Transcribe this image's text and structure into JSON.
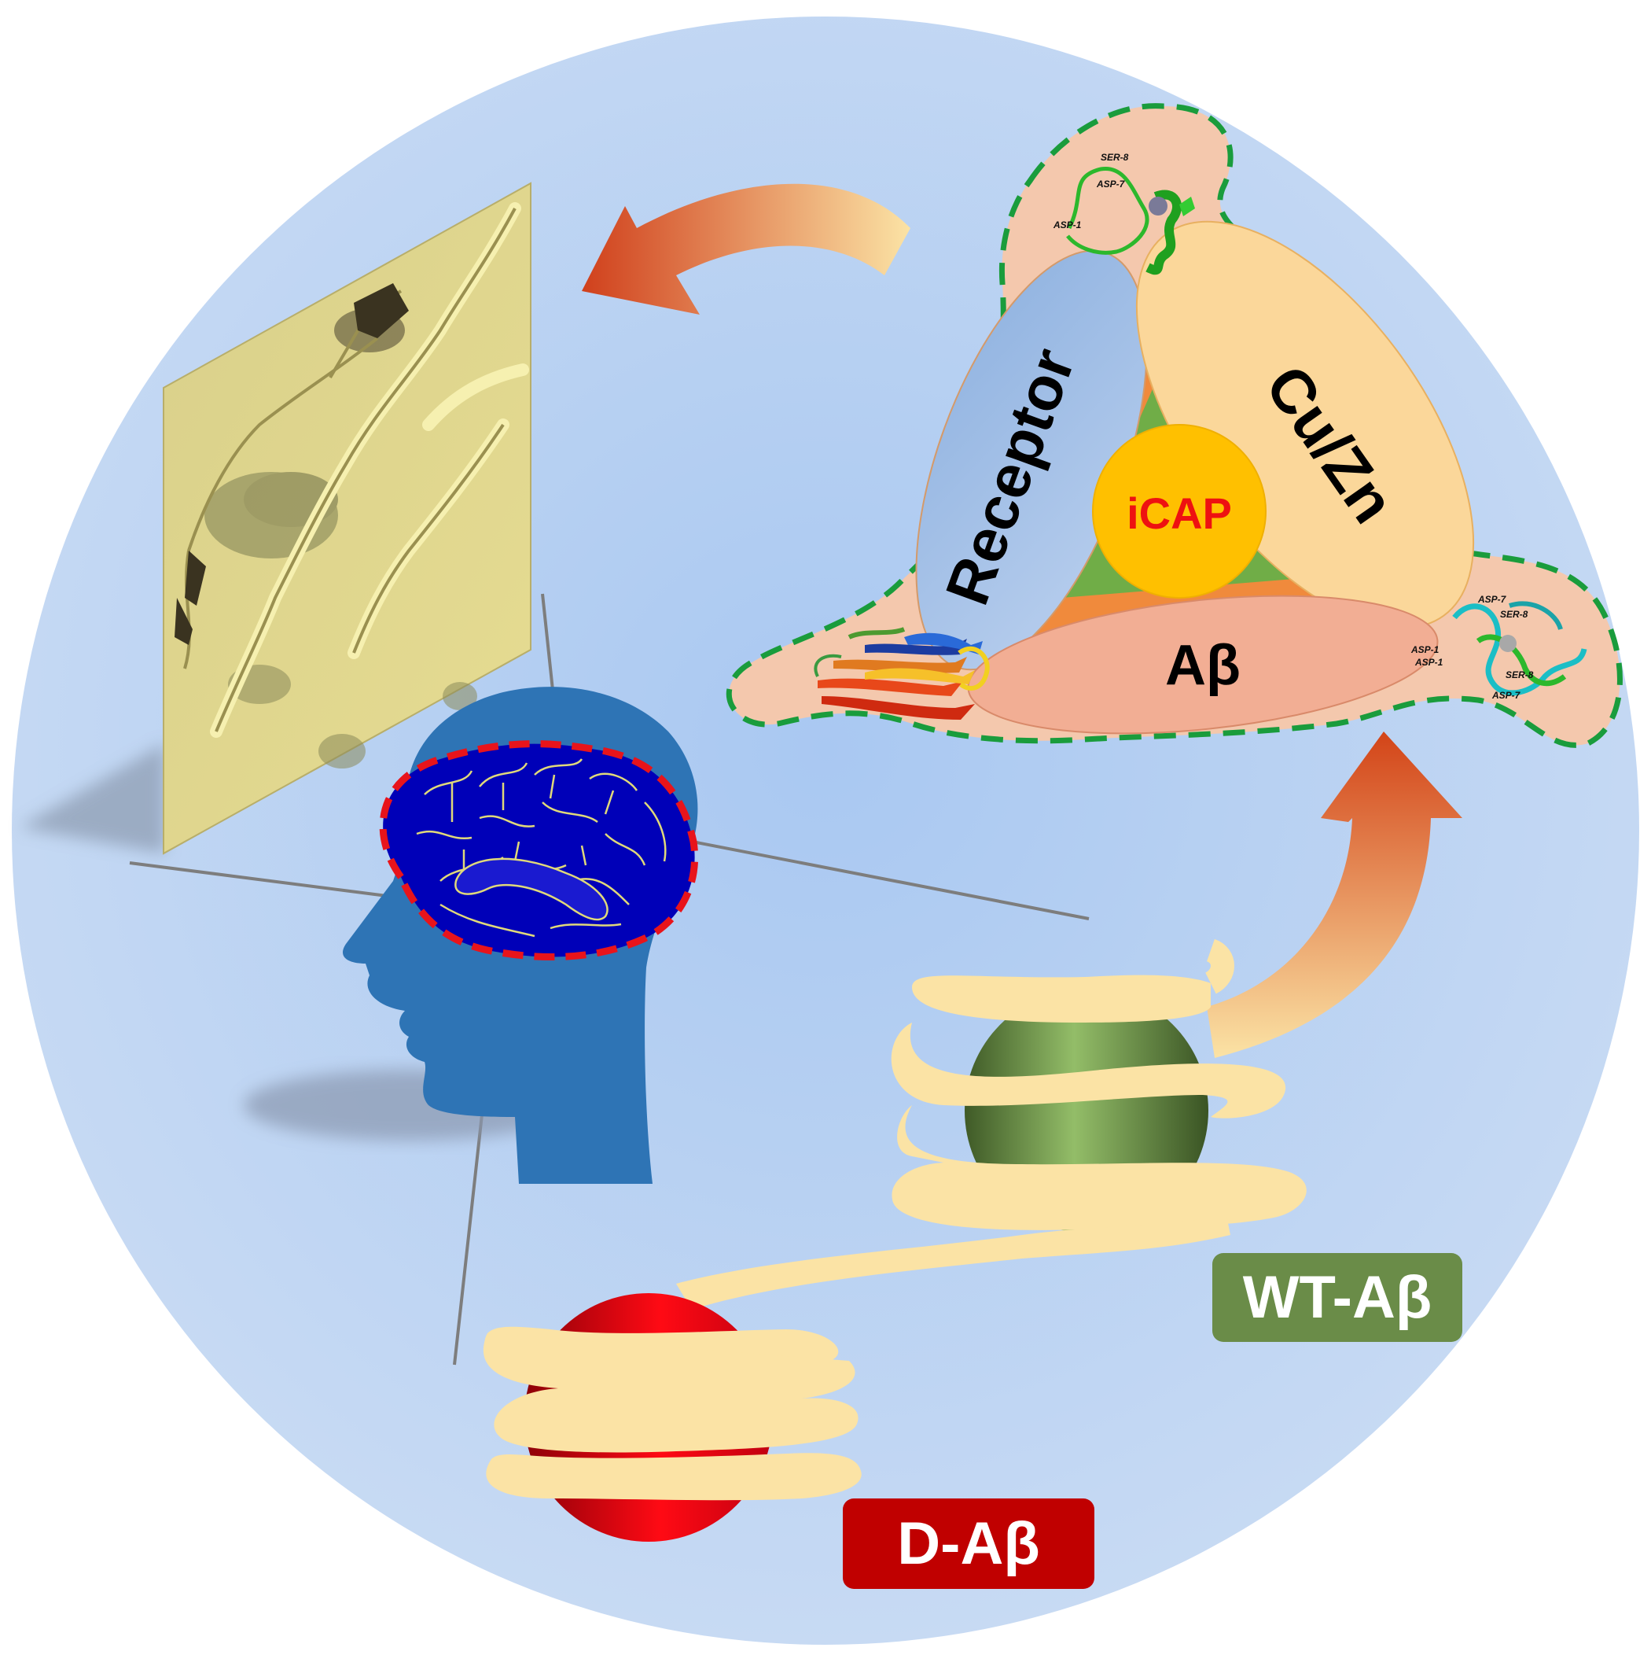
{
  "triangle": {
    "receptor_label": "Receptor",
    "cuzn_label": "Cu/Zn",
    "abeta_label": "Aβ",
    "center_label": "iCAP"
  },
  "residues_top": [
    "SER-8",
    "ASP-7",
    "ASP-1"
  ],
  "residues_right": [
    "ASP-7",
    "SER-8",
    "ASP-1",
    "ASP-1",
    "SER-8",
    "ASP-7"
  ],
  "badges": {
    "wt_label": "WT-Aβ",
    "d_label": "D-Aβ"
  },
  "colors": {
    "background_circle": "#b8d0f0",
    "head": "#2e74b5",
    "brain": "#0000b8",
    "brain_outline": "#e8141b",
    "wt_sphere": "#7ea356",
    "d_sphere": "#e00010",
    "ribbon": "#fbe3a5",
    "arrow": "#d94a22",
    "receptor_ellipse": "#9dbbe3",
    "cuzn_ellipse": "#fbd79a",
    "abeta_ellipse": "#f2ae94",
    "icap_circle": "#ffc000",
    "icap_text": "#ee1111",
    "wt_badge": "#6a8c48",
    "d_badge": "#c00000",
    "dashed_outline": "#1a9c3c"
  },
  "icons": [
    "brain-icon",
    "head-silhouette-icon",
    "neuron-micrograph",
    "curved-arrow-icon",
    "protein-ribbon-icon",
    "metal-ion-icon"
  ]
}
